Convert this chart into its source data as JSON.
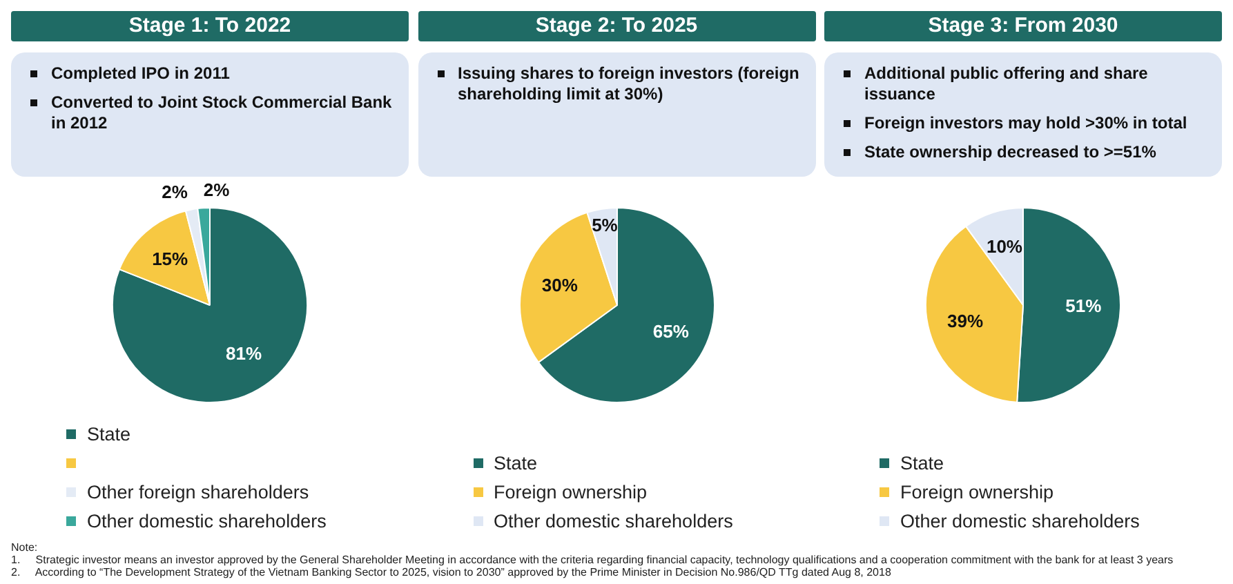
{
  "chart_data": [
    {
      "type": "pie",
      "title": "Stage 1: To 2022",
      "annotations": [
        "Completed IPO in 2011",
        "Converted to Joint Stock Commercial Bank in 2012"
      ],
      "categories": [
        "State",
        null,
        "Other foreign shareholders",
        "Other domestic shareholders"
      ],
      "values": [
        81,
        15,
        2,
        2
      ],
      "colors": [
        "#1f6b65",
        "#f7c842",
        "#e4ebf5",
        "#3aa89c"
      ],
      "value_labels": [
        "81%",
        "15%",
        "2%",
        "2%"
      ],
      "legend": "bottom"
    },
    {
      "type": "pie",
      "title": "Stage 2: To 2025",
      "annotations": [
        "Issuing shares to foreign investors (foreign shareholding limit at 30%)"
      ],
      "categories": [
        "State",
        "Foreign ownership",
        "Other domestic shareholders"
      ],
      "values": [
        65,
        30,
        5
      ],
      "colors": [
        "#1f6b65",
        "#f7c842",
        "#dfe7f4"
      ],
      "value_labels": [
        "65%",
        "30%",
        "5%"
      ],
      "legend": "bottom"
    },
    {
      "type": "pie",
      "title": "Stage 3: From 2030",
      "annotations": [
        "Additional public offering and share issuance",
        "Foreign investors may hold >30% in total",
        "State ownership decreased to >=51%"
      ],
      "categories": [
        "State",
        "Foreign ownership",
        "Other domestic shareholders"
      ],
      "values": [
        51,
        39,
        10
      ],
      "colors": [
        "#1f6b65",
        "#f7c842",
        "#dfe7f4"
      ],
      "value_labels": [
        "51%",
        "39%",
        "10%"
      ],
      "legend": "bottom"
    },
    {
      "type": "other",
      "annotations": [
        "Note:",
        "1.     Strategic investor means an investor approved by the General Shareholder Meeting in accordance with the criteria regarding financial capacity, technology qualifications and a cooperation commitment with the bank for at least 3 years",
        "2.     According to “The Development Strategy of the Vietnam Banking Sector to 2025, vision to 2030” approved by the Prime Minister in Decision No.986/QD TTg dated Aug 8, 2018"
      ]
    }
  ]
}
